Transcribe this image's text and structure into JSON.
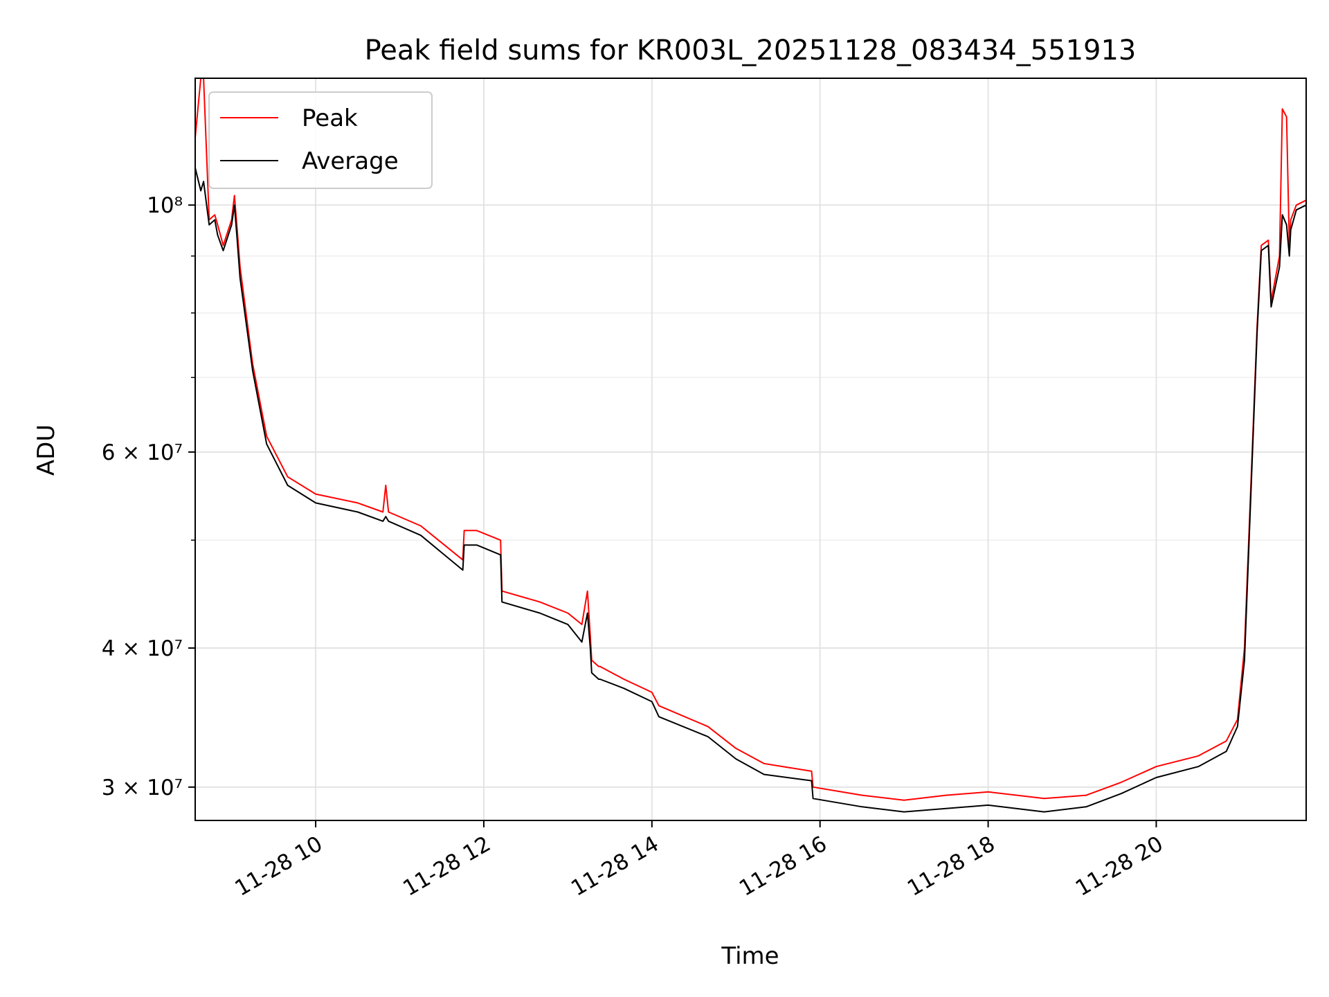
{
  "chart_data": {
    "type": "line",
    "title": "Peak field sums for KR003L_20251128_083434_551913",
    "xlabel": "Time",
    "ylabel": "ADU",
    "yscale": "log",
    "xlim": [
      "2025-11-28 08:34",
      "2025-11-28 21:47"
    ],
    "ylim": [
      28000000,
      130000000
    ],
    "grid": true,
    "legend_placement": "upper-left",
    "x_ticks": [
      {
        "value": "2025-11-28 10:00",
        "label": "11-28 10"
      },
      {
        "value": "2025-11-28 12:00",
        "label": "11-28 12"
      },
      {
        "value": "2025-11-28 14:00",
        "label": "11-28 14"
      },
      {
        "value": "2025-11-28 16:00",
        "label": "11-28 16"
      },
      {
        "value": "2025-11-28 18:00",
        "label": "11-28 18"
      },
      {
        "value": "2025-11-28 20:00",
        "label": "11-28 20"
      }
    ],
    "y_ticks": [
      {
        "value": 30000000,
        "label": "3 × 10⁷"
      },
      {
        "value": 40000000,
        "label": "4 × 10⁷"
      },
      {
        "value": 60000000,
        "label": "6 × 10⁷"
      },
      {
        "value": 100000000,
        "label": "10⁸"
      }
    ],
    "series": [
      {
        "name": "Peak",
        "color": "#ff0000",
        "x": [
          "2025-11-28 08:34",
          "2025-11-28 08:38",
          "2025-11-28 08:40",
          "2025-11-28 08:44",
          "2025-11-28 08:48",
          "2025-11-28 08:50",
          "2025-11-28 08:54",
          "2025-11-28 09:00",
          "2025-11-28 09:02",
          "2025-11-28 09:04",
          "2025-11-28 09:06",
          "2025-11-28 09:15",
          "2025-11-28 09:25",
          "2025-11-28 09:40",
          "2025-11-28 10:00",
          "2025-11-28 10:30",
          "2025-11-28 10:48",
          "2025-11-28 10:50",
          "2025-11-28 10:52",
          "2025-11-28 11:15",
          "2025-11-28 11:45",
          "2025-11-28 11:46",
          "2025-11-28 11:55",
          "2025-11-28 12:12",
          "2025-11-28 12:13",
          "2025-11-28 12:40",
          "2025-11-28 13:00",
          "2025-11-28 13:10",
          "2025-11-28 13:14",
          "2025-11-28 13:16",
          "2025-11-28 13:17",
          "2025-11-28 13:22",
          "2025-11-28 13:23",
          "2025-11-28 13:40",
          "2025-11-28 14:00",
          "2025-11-28 14:05",
          "2025-11-28 14:40",
          "2025-11-28 15:00",
          "2025-11-28 15:20",
          "2025-11-28 15:54",
          "2025-11-28 15:55",
          "2025-11-28 16:30",
          "2025-11-28 17:00",
          "2025-11-28 17:30",
          "2025-11-28 18:00",
          "2025-11-28 18:40",
          "2025-11-28 19:10",
          "2025-11-28 19:35",
          "2025-11-28 20:00",
          "2025-11-28 20:30",
          "2025-11-28 20:50",
          "2025-11-28 20:58",
          "2025-11-28 21:03",
          "2025-11-28 21:08",
          "2025-11-28 21:12",
          "2025-11-28 21:15",
          "2025-11-28 21:20",
          "2025-11-28 21:22",
          "2025-11-28 21:28",
          "2025-11-28 21:30",
          "2025-11-28 21:33",
          "2025-11-28 21:35",
          "2025-11-28 21:36",
          "2025-11-28 21:40",
          "2025-11-28 21:47"
        ],
        "y": [
          115000000,
          130000000,
          130000000,
          97000000,
          98000000,
          96000000,
          92000000,
          97000000,
          102000000,
          95000000,
          88000000,
          72000000,
          62000000,
          57000000,
          55000000,
          54000000,
          53000000,
          56000000,
          53000000,
          51500000,
          48000000,
          51000000,
          51000000,
          50000000,
          45000000,
          44000000,
          43000000,
          42000000,
          45000000,
          41000000,
          39000000,
          38500000,
          38500000,
          37500000,
          36500000,
          35500000,
          34000000,
          32500000,
          31500000,
          31000000,
          30000000,
          29500000,
          29200000,
          29500000,
          29700000,
          29300000,
          29500000,
          30300000,
          31300000,
          32000000,
          33000000,
          34500000,
          40000000,
          58000000,
          78000000,
          92000000,
          93000000,
          82000000,
          90000000,
          122000000,
          120000000,
          92000000,
          97000000,
          100000000,
          101000000
        ]
      },
      {
        "name": "Average",
        "color": "#000000",
        "x": [
          "2025-11-28 08:34",
          "2025-11-28 08:38",
          "2025-11-28 08:40",
          "2025-11-28 08:44",
          "2025-11-28 08:48",
          "2025-11-28 08:50",
          "2025-11-28 08:54",
          "2025-11-28 09:00",
          "2025-11-28 09:02",
          "2025-11-28 09:04",
          "2025-11-28 09:06",
          "2025-11-28 09:15",
          "2025-11-28 09:25",
          "2025-11-28 09:40",
          "2025-11-28 10:00",
          "2025-11-28 10:30",
          "2025-11-28 10:48",
          "2025-11-28 10:50",
          "2025-11-28 10:52",
          "2025-11-28 11:15",
          "2025-11-28 11:45",
          "2025-11-28 11:46",
          "2025-11-28 11:55",
          "2025-11-28 12:12",
          "2025-11-28 12:13",
          "2025-11-28 12:40",
          "2025-11-28 13:00",
          "2025-11-28 13:10",
          "2025-11-28 13:14",
          "2025-11-28 13:16",
          "2025-11-28 13:17",
          "2025-11-28 13:22",
          "2025-11-28 13:23",
          "2025-11-28 13:40",
          "2025-11-28 14:00",
          "2025-11-28 14:05",
          "2025-11-28 14:40",
          "2025-11-28 15:00",
          "2025-11-28 15:20",
          "2025-11-28 15:54",
          "2025-11-28 15:55",
          "2025-11-28 16:30",
          "2025-11-28 17:00",
          "2025-11-28 17:30",
          "2025-11-28 18:00",
          "2025-11-28 18:40",
          "2025-11-28 19:10",
          "2025-11-28 19:35",
          "2025-11-28 20:00",
          "2025-11-28 20:30",
          "2025-11-28 20:50",
          "2025-11-28 20:58",
          "2025-11-28 21:03",
          "2025-11-28 21:08",
          "2025-11-28 21:12",
          "2025-11-28 21:15",
          "2025-11-28 21:20",
          "2025-11-28 21:22",
          "2025-11-28 21:28",
          "2025-11-28 21:30",
          "2025-11-28 21:33",
          "2025-11-28 21:35",
          "2025-11-28 21:36",
          "2025-11-28 21:40",
          "2025-11-28 21:47"
        ],
        "y": [
          108000000,
          103000000,
          105000000,
          96000000,
          97000000,
          94000000,
          91000000,
          96000000,
          100000000,
          93000000,
          86000000,
          71000000,
          61000000,
          56000000,
          54000000,
          53000000,
          52000000,
          52500000,
          52000000,
          50500000,
          47000000,
          49500000,
          49500000,
          48500000,
          44000000,
          43000000,
          42000000,
          40500000,
          43000000,
          40000000,
          38000000,
          37500000,
          37500000,
          36800000,
          35800000,
          34700000,
          33300000,
          31800000,
          30800000,
          30400000,
          29300000,
          28800000,
          28500000,
          28700000,
          28900000,
          28500000,
          28800000,
          29600000,
          30600000,
          31300000,
          32300000,
          34000000,
          39000000,
          57000000,
          77000000,
          91000000,
          92000000,
          81000000,
          88000000,
          98000000,
          96000000,
          90000000,
          95000000,
          99000000,
          100000000
        ]
      }
    ]
  }
}
